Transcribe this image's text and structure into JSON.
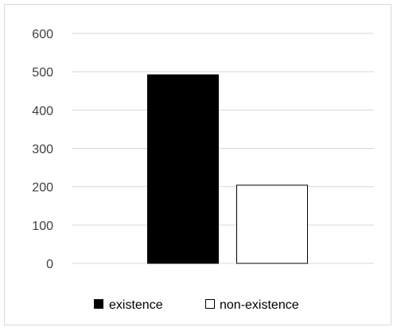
{
  "chart_data": {
    "type": "bar",
    "categories": [
      "existence",
      "non-existence"
    ],
    "values": [
      492,
      204
    ],
    "title": "",
    "xlabel": "",
    "ylabel": "",
    "ylim": [
      0,
      600
    ],
    "yticks": [
      0,
      100,
      200,
      300,
      400,
      500,
      600
    ],
    "grid": true,
    "legend": "bottom",
    "colors": {
      "bar_fills": [
        "#000000",
        "#ffffff"
      ],
      "bar_stroke": "#000000",
      "grid": "#d9d9d9",
      "tick_text": "#404040"
    }
  }
}
